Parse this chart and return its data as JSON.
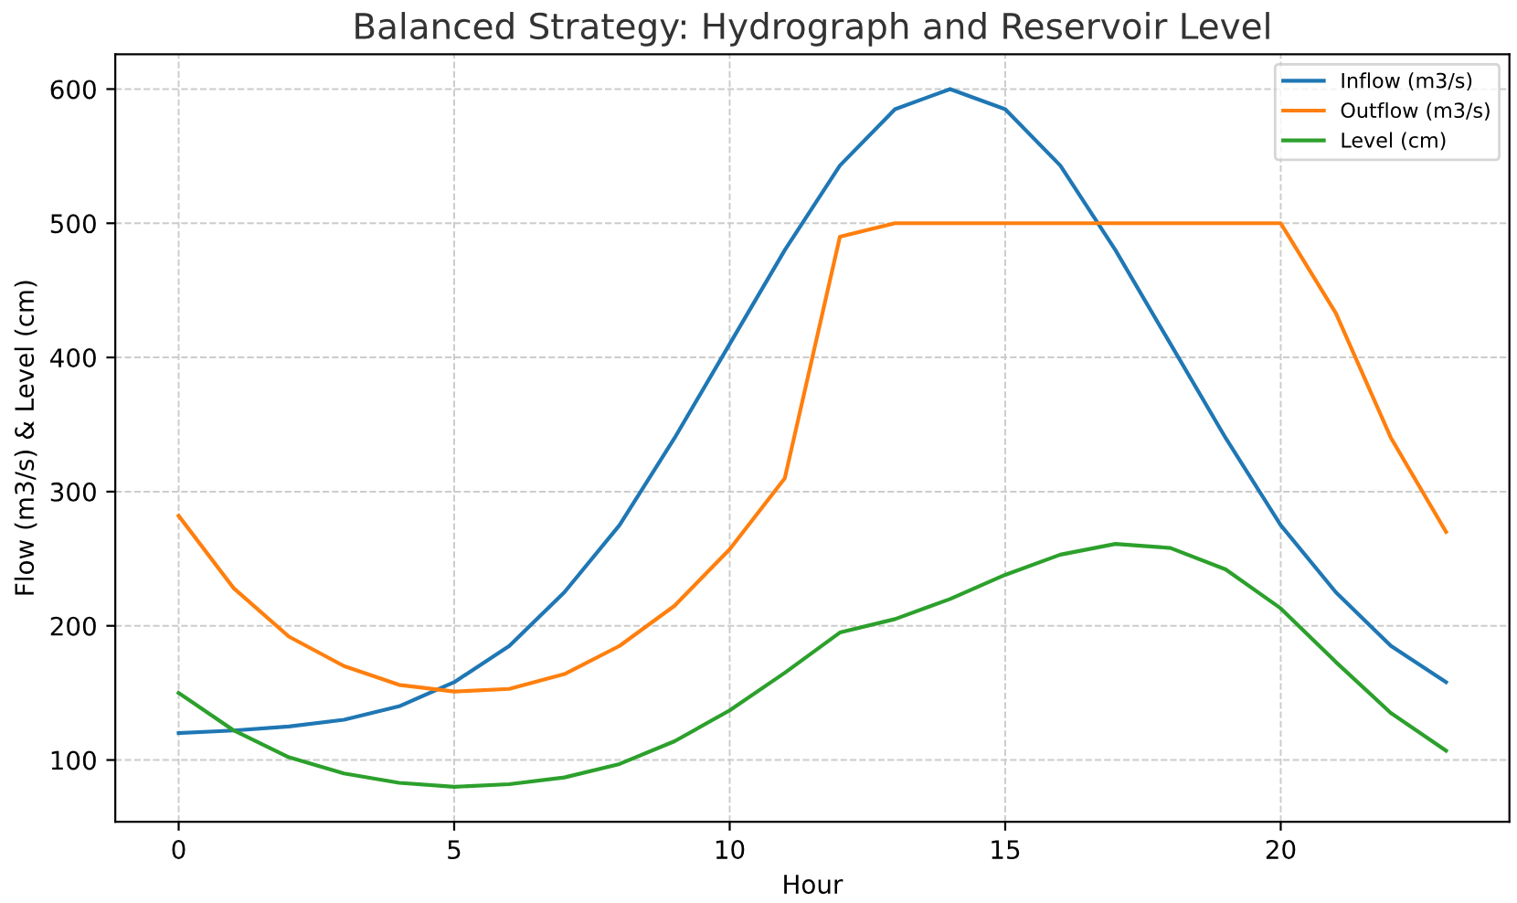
{
  "chart_data": {
    "type": "line",
    "title": "Balanced Strategy: Hydrograph and Reservoir Level",
    "xlabel": "Hour",
    "ylabel": "Flow (m3/s) & Level (cm)",
    "x": [
      0,
      1,
      2,
      3,
      4,
      5,
      6,
      7,
      8,
      9,
      10,
      11,
      12,
      13,
      14,
      15,
      16,
      17,
      18,
      19,
      20,
      21,
      22,
      23
    ],
    "series": [
      {
        "name": "Inflow (m3/s)",
        "color": "#1f77b4",
        "values": [
          120,
          122,
          125,
          130,
          140,
          158,
          185,
          225,
          275,
          340,
          410,
          480,
          543,
          585,
          600,
          585,
          543,
          480,
          410,
          340,
          275,
          225,
          185,
          158
        ]
      },
      {
        "name": "Outflow (m3/s)",
        "color": "#ff7f0e",
        "values": [
          282,
          228,
          192,
          170,
          156,
          151,
          153,
          164,
          185,
          215,
          257,
          310,
          490,
          500,
          500,
          500,
          500,
          500,
          500,
          500,
          500,
          433,
          340,
          270
        ]
      },
      {
        "name": "Level (cm)",
        "color": "#2ca02c",
        "values": [
          150,
          122,
          102,
          90,
          83,
          80,
          82,
          87,
          97,
          114,
          137,
          165,
          195,
          205,
          220,
          238,
          253,
          261,
          258,
          242,
          213,
          173,
          135,
          107
        ]
      }
    ],
    "xlim": [
      -1.15,
      24.15
    ],
    "ylim": [
      54,
      626
    ],
    "xticks": [
      0,
      5,
      10,
      15,
      20
    ],
    "yticks": [
      100,
      200,
      300,
      400,
      500,
      600
    ],
    "grid": true,
    "legend": "top right",
    "line_style": "solid",
    "marker": "none"
  }
}
